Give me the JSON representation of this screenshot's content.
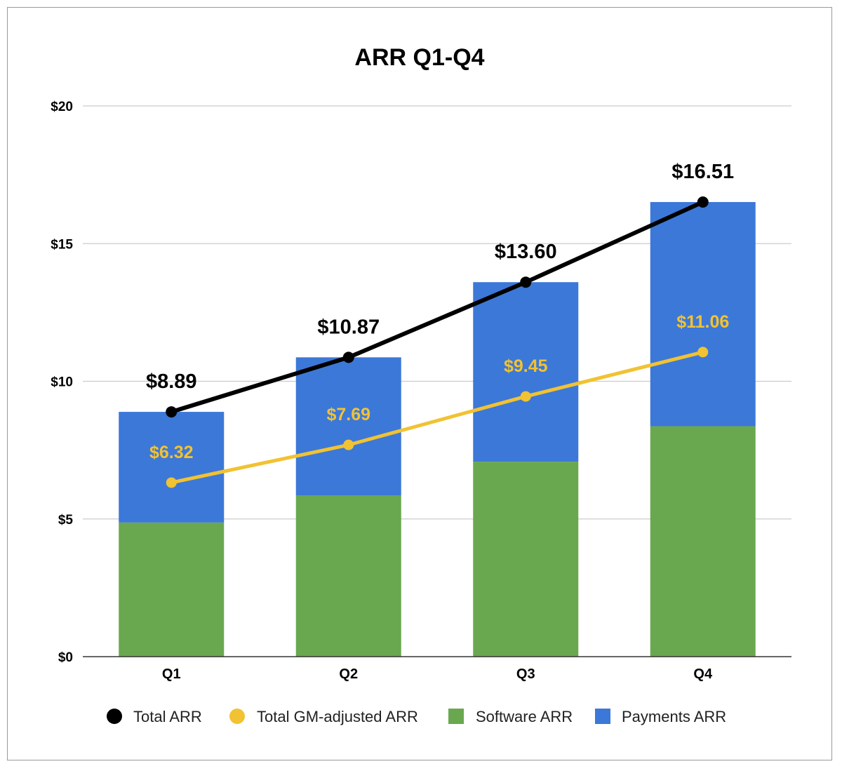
{
  "chart_data": {
    "type": "bar",
    "title": "ARR Q1-Q4",
    "categories": [
      "Q1",
      "Q2",
      "Q3",
      "Q4"
    ],
    "ylim": [
      0,
      20
    ],
    "yticks": [
      0,
      5,
      10,
      15,
      20
    ],
    "ytick_labels": [
      "$0",
      "$5",
      "$10",
      "$15",
      "$20"
    ],
    "grid": true,
    "legend_position": "bottom",
    "bar_series": [
      {
        "name": "Software ARR",
        "values": [
          4.87,
          5.85,
          7.08,
          8.37
        ],
        "color": "#6aa84f"
      },
      {
        "name": "Payments ARR",
        "values": [
          4.02,
          5.02,
          6.52,
          8.14
        ],
        "color": "#3c78d8"
      }
    ],
    "line_series": [
      {
        "name": "Total ARR",
        "values": [
          8.89,
          10.87,
          13.6,
          16.51
        ],
        "labels": [
          "$8.89",
          "$10.87",
          "$13.60",
          "$16.51"
        ],
        "color": "#000000"
      },
      {
        "name": "Total GM-adjusted ARR",
        "values": [
          6.32,
          7.69,
          9.45,
          11.06
        ],
        "labels": [
          "$6.32",
          "$7.69",
          "$9.45",
          "$11.06"
        ],
        "color": "#f1c232"
      }
    ],
    "legend": [
      "Total ARR",
      "Total GM-adjusted ARR",
      "Software ARR",
      "Payments ARR"
    ]
  }
}
